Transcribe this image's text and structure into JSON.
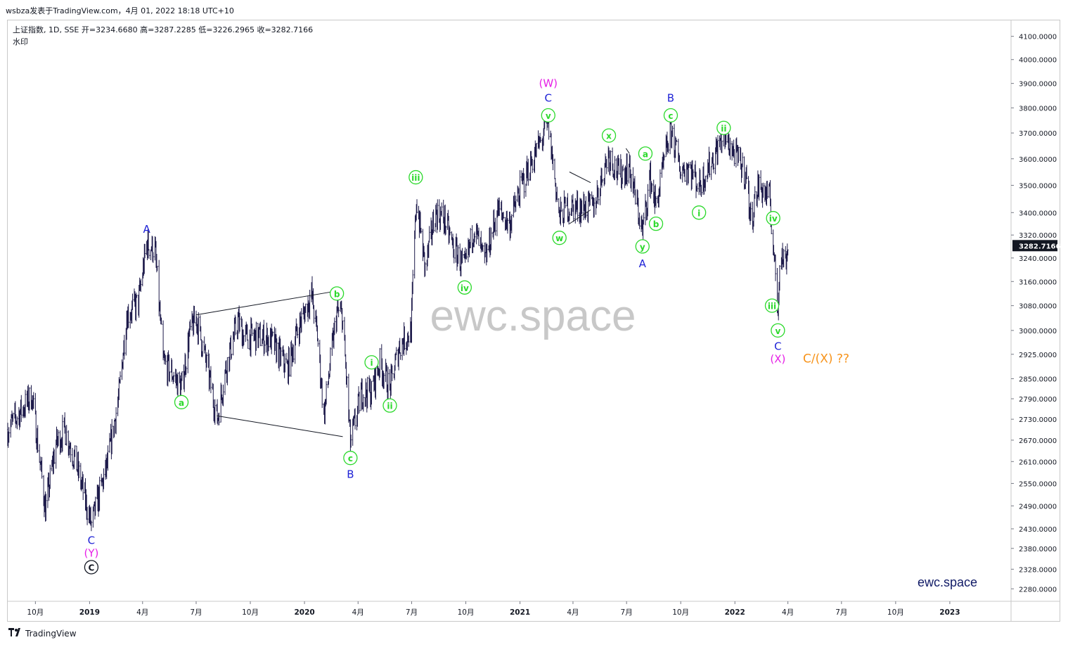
{
  "header": {
    "publisher_line": "wsbza发表于TradingView.com，4月 01, 2022 18:18 UTC+10",
    "legend_line": "上证指数, 1D, SSE  开=3234.6680  高=3287.2285  低=3226.2965  收=3282.7166",
    "legend_sub": "水印"
  },
  "footer": {
    "brand": "TradingView",
    "logo_icon": "tradingview-logo-icon"
  },
  "colors": {
    "bars": "#1e1b4b",
    "green_label": "#2bd92b",
    "blue_label": "#1e22d6",
    "magenta_label": "#e61ee6",
    "orange_label": "#f7931a",
    "price_box": "#131722",
    "watermark": "#c8c8c8",
    "brand_text": "#101a66"
  },
  "chart_data": {
    "type": "ohlc",
    "title": "上证指数, 1D, SSE",
    "symbol": "上证指数",
    "interval": "1D",
    "exchange": "SSE",
    "last": {
      "open": 3234.668,
      "high": 3287.2285,
      "low": 3226.2965,
      "close": 3282.7166,
      "label": "3282.7166"
    },
    "y_scale": "log",
    "ylim": [
      2250,
      4170
    ],
    "y_ticks": [
      "2280.0000",
      "2328.0000",
      "2380.0000",
      "2430.0000",
      "2490.0000",
      "2550.0000",
      "2610.0000",
      "2670.0000",
      "2730.0000",
      "2790.0000",
      "2850.0000",
      "2925.0000",
      "3000.0000",
      "3080.0000",
      "3160.0000",
      "3240.0000",
      "3320.0000",
      "3400.0000",
      "3500.0000",
      "3600.0000",
      "3700.0000",
      "3800.0000",
      "3900.0000",
      "4000.0000",
      "4100.0000"
    ],
    "x_ticks": [
      {
        "label": "10月",
        "date": "2018-10-01"
      },
      {
        "label": "2019",
        "date": "2019-01-01"
      },
      {
        "label": "4月",
        "date": "2019-04-01"
      },
      {
        "label": "7月",
        "date": "2019-07-01"
      },
      {
        "label": "10月",
        "date": "2019-10-01"
      },
      {
        "label": "2020",
        "date": "2020-01-01"
      },
      {
        "label": "4月",
        "date": "2020-04-01"
      },
      {
        "label": "7月",
        "date": "2020-07-01"
      },
      {
        "label": "10月",
        "date": "2020-10-01"
      },
      {
        "label": "2021",
        "date": "2021-01-01"
      },
      {
        "label": "4月",
        "date": "2021-04-01"
      },
      {
        "label": "7月",
        "date": "2021-07-01"
      },
      {
        "label": "10月",
        "date": "2021-10-01"
      },
      {
        "label": "2022",
        "date": "2022-01-01"
      },
      {
        "label": "4月",
        "date": "2022-04-01"
      },
      {
        "label": "7月",
        "date": "2022-07-01"
      },
      {
        "label": "10月",
        "date": "2022-10-01"
      },
      {
        "label": "2023",
        "date": "2023-01-01"
      }
    ],
    "xlim": [
      "2018-08-15",
      "2023-04-15"
    ],
    "grid": false,
    "legend": "top-left",
    "price_path": [
      [
        "2018-08-15",
        2700
      ],
      [
        "2018-09-01",
        2740
      ],
      [
        "2018-09-25",
        2800
      ],
      [
        "2018-10-18",
        2480
      ],
      [
        "2018-11-05",
        2660
      ],
      [
        "2018-11-20",
        2700
      ],
      [
        "2018-12-10",
        2600
      ],
      [
        "2019-01-04",
        2440
      ],
      [
        "2019-01-31",
        2600
      ],
      [
        "2019-02-20",
        2800
      ],
      [
        "2019-03-05",
        3050
      ],
      [
        "2019-03-25",
        3090
      ],
      [
        "2019-04-08",
        3288
      ],
      [
        "2019-04-22",
        3270
      ],
      [
        "2019-05-06",
        2900
      ],
      [
        "2019-05-20",
        2870
      ],
      [
        "2019-06-06",
        2820
      ],
      [
        "2019-06-20",
        2990
      ],
      [
        "2019-07-01",
        3040
      ],
      [
        "2019-07-18",
        2900
      ],
      [
        "2019-08-06",
        2730
      ],
      [
        "2019-08-20",
        2880
      ],
      [
        "2019-09-10",
        3030
      ],
      [
        "2019-09-20",
        2980
      ],
      [
        "2019-10-15",
        2980
      ],
      [
        "2019-11-05",
        2970
      ],
      [
        "2019-12-03",
        2880
      ],
      [
        "2019-12-20",
        3000
      ],
      [
        "2020-01-13",
        3120
      ],
      [
        "2020-01-23",
        2980
      ],
      [
        "2020-02-03",
        2740
      ],
      [
        "2020-02-25",
        3060
      ],
      [
        "2020-03-05",
        3050
      ],
      [
        "2020-03-19",
        2660
      ],
      [
        "2020-04-07",
        2810
      ],
      [
        "2020-04-24",
        2810
      ],
      [
        "2020-05-08",
        2900
      ],
      [
        "2020-05-25",
        2820
      ],
      [
        "2020-06-10",
        2950
      ],
      [
        "2020-06-30",
        3000
      ],
      [
        "2020-07-06",
        3300
      ],
      [
        "2020-07-09",
        3450
      ],
      [
        "2020-07-24",
        3200
      ],
      [
        "2020-08-10",
        3400
      ],
      [
        "2020-08-25",
        3380
      ],
      [
        "2020-09-09",
        3280
      ],
      [
        "2020-09-29",
        3200
      ],
      [
        "2020-10-15",
        3350
      ],
      [
        "2020-11-02",
        3220
      ],
      [
        "2020-11-24",
        3410
      ],
      [
        "2020-12-14",
        3360
      ],
      [
        "2021-01-04",
        3500
      ],
      [
        "2021-01-25",
        3610
      ],
      [
        "2021-02-18",
        3730
      ],
      [
        "2021-03-09",
        3380
      ],
      [
        "2021-03-20",
        3420
      ],
      [
        "2021-04-15",
        3420
      ],
      [
        "2021-05-06",
        3420
      ],
      [
        "2021-05-31",
        3620
      ],
      [
        "2021-06-18",
        3540
      ],
      [
        "2021-07-05",
        3570
      ],
      [
        "2021-07-28",
        3330
      ],
      [
        "2021-08-10",
        3530
      ],
      [
        "2021-08-20",
        3420
      ],
      [
        "2021-09-14",
        3720
      ],
      [
        "2021-09-30",
        3560
      ],
      [
        "2021-10-15",
        3570
      ],
      [
        "2021-11-01",
        3500
      ],
      [
        "2021-11-20",
        3580
      ],
      [
        "2021-12-13",
        3690
      ],
      [
        "2021-12-31",
        3620
      ],
      [
        "2022-01-20",
        3540
      ],
      [
        "2022-01-28",
        3370
      ],
      [
        "2022-02-10",
        3500
      ],
      [
        "2022-03-01",
        3450
      ],
      [
        "2022-03-07",
        3290
      ],
      [
        "2022-03-15",
        3060
      ],
      [
        "2022-03-18",
        3250
      ],
      [
        "2022-03-28",
        3230
      ],
      [
        "2022-04-01",
        3282.7166
      ]
    ],
    "trend_lines": [
      {
        "from": [
          "2019-07-01",
          3050
        ],
        "to": [
          "2020-03-01",
          3130
        ]
      },
      {
        "from": [
          "2019-08-05",
          2740
        ],
        "to": [
          "2020-03-06",
          2680
        ]
      },
      {
        "from": [
          "2019-09-12",
          3000
        ],
        "to": [
          "2019-09-12",
          3000
        ]
      },
      {
        "from": [
          "2021-03-26",
          3550
        ],
        "to": [
          "2021-05-01",
          3510
        ]
      },
      {
        "from": [
          "2021-03-26",
          3450
        ],
        "to": [
          "2021-03-26",
          3450
        ]
      },
      {
        "from": [
          "2021-03-26",
          3360
        ],
        "to": [
          "2021-05-01",
          3410
        ]
      },
      {
        "from": [
          "2021-06-30",
          3640
        ],
        "to": [
          "2021-07-06",
          3620
        ]
      }
    ],
    "annotations": [
      {
        "text": "(W)",
        "date": "2021-02-18",
        "price": 3900,
        "color": "magenta",
        "circle": false
      },
      {
        "text": "C",
        "date": "2021-02-18",
        "price": 3840,
        "color": "blue",
        "circle": false
      },
      {
        "text": "v",
        "date": "2021-02-18",
        "price": 3770,
        "color": "green",
        "circle": true
      },
      {
        "text": "B",
        "date": "2021-09-14",
        "price": 3840,
        "color": "blue",
        "circle": false
      },
      {
        "text": "c",
        "date": "2021-09-14",
        "price": 3770,
        "color": "green",
        "circle": true
      },
      {
        "text": "x",
        "date": "2021-06-01",
        "price": 3690,
        "color": "green",
        "circle": true
      },
      {
        "text": "ii",
        "date": "2021-12-13",
        "price": 3720,
        "color": "green",
        "circle": true
      },
      {
        "text": "a",
        "date": "2021-08-02",
        "price": 3620,
        "color": "green",
        "circle": true
      },
      {
        "text": "iii",
        "date": "2020-07-08",
        "price": 3530,
        "color": "green",
        "circle": true
      },
      {
        "text": "i",
        "date": "2021-11-01",
        "price": 3400,
        "color": "green",
        "circle": true
      },
      {
        "text": "iv",
        "date": "2022-03-07",
        "price": 3380,
        "color": "green",
        "circle": true
      },
      {
        "text": "b",
        "date": "2021-08-20",
        "price": 3360,
        "color": "green",
        "circle": true
      },
      {
        "text": "A",
        "date": "2019-04-08",
        "price": 3340,
        "color": "blue",
        "circle": false
      },
      {
        "text": "w",
        "date": "2021-03-09",
        "price": 3310,
        "color": "green",
        "circle": true
      },
      {
        "text": "y",
        "date": "2021-07-28",
        "price": 3280,
        "color": "green",
        "circle": true
      },
      {
        "text": "A",
        "date": "2021-07-28",
        "price": 3220,
        "color": "blue",
        "circle": false
      },
      {
        "text": "iv",
        "date": "2020-09-29",
        "price": 3140,
        "color": "green",
        "circle": true
      },
      {
        "text": "b",
        "date": "2020-02-25",
        "price": 3120,
        "color": "green",
        "circle": true
      },
      {
        "text": "iii",
        "date": "2022-03-05",
        "price": 3080,
        "color": "green",
        "circle": true
      },
      {
        "text": "v",
        "date": "2022-03-15",
        "price": 3000,
        "color": "green",
        "circle": true
      },
      {
        "text": "C",
        "date": "2022-03-15",
        "price": 2950,
        "color": "blue",
        "circle": false
      },
      {
        "text": "(X)",
        "date": "2022-03-15",
        "price": 2910,
        "color": "magenta",
        "circle": false
      },
      {
        "text": "C/(X) ??",
        "date": "2022-06-05",
        "price": 2910,
        "color": "orange",
        "circle": false,
        "size": 17
      },
      {
        "text": "i",
        "date": "2020-04-24",
        "price": 2900,
        "color": "green",
        "circle": true
      },
      {
        "text": "ii",
        "date": "2020-05-25",
        "price": 2770,
        "color": "green",
        "circle": true
      },
      {
        "text": "a",
        "date": "2019-06-06",
        "price": 2780,
        "color": "green",
        "circle": true
      },
      {
        "text": "c",
        "date": "2020-03-19",
        "price": 2620,
        "color": "green",
        "circle": true
      },
      {
        "text": "B",
        "date": "2020-03-19",
        "price": 2575,
        "color": "blue",
        "circle": false
      },
      {
        "text": "C",
        "date": "2019-01-04",
        "price": 2400,
        "color": "blue",
        "circle": false
      },
      {
        "text": "(Y)",
        "date": "2019-01-04",
        "price": 2368,
        "color": "magenta",
        "circle": false
      },
      {
        "text": "C",
        "date": "2019-01-04",
        "price": 2333,
        "color": "black",
        "circle": true
      }
    ],
    "watermark_text": "ewc.space",
    "brand_text": "ewc.space"
  }
}
